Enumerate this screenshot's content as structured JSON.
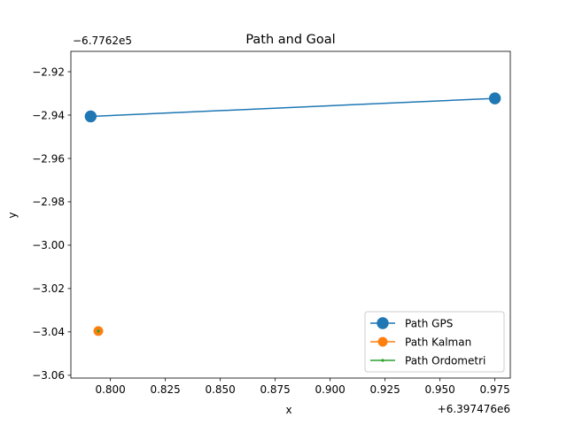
{
  "chart_data": {
    "type": "line",
    "title": "Path and Goal",
    "xlabel": "x",
    "ylabel": "y",
    "x_offset_label": "+6.397476e6",
    "y_offset_label": "−6.7762e5",
    "xlim": [
      0.782,
      0.982
    ],
    "ylim": [
      -3.0613,
      -2.9106
    ],
    "x_ticks": [
      {
        "value": 0.8,
        "label": "0.800"
      },
      {
        "value": 0.825,
        "label": "0.825"
      },
      {
        "value": 0.85,
        "label": "0.850"
      },
      {
        "value": 0.875,
        "label": "0.875"
      },
      {
        "value": 0.9,
        "label": "0.900"
      },
      {
        "value": 0.925,
        "label": "0.925"
      },
      {
        "value": 0.95,
        "label": "0.950"
      },
      {
        "value": 0.975,
        "label": "0.975"
      }
    ],
    "y_ticks": [
      {
        "value": -2.92,
        "label": "−2.92"
      },
      {
        "value": -2.94,
        "label": "−2.94"
      },
      {
        "value": -2.96,
        "label": "−2.96"
      },
      {
        "value": -2.98,
        "label": "−2.98"
      },
      {
        "value": -3.0,
        "label": "−3.00"
      },
      {
        "value": -3.02,
        "label": "−3.02"
      },
      {
        "value": -3.04,
        "label": "−3.04"
      },
      {
        "value": -3.06,
        "label": "−3.06"
      }
    ],
    "grid": false,
    "legend_position": "lower-right",
    "series": [
      {
        "name": "Path GPS",
        "color": "#1f77b4",
        "marker": "large-circle",
        "points": [
          [
            0.791,
            -2.9406
          ],
          [
            0.975,
            -2.9323
          ]
        ]
      },
      {
        "name": "Path Kalman",
        "color": "#ff7f0e",
        "marker": "medium-circle",
        "points": [
          [
            0.7945,
            -3.0396
          ]
        ]
      },
      {
        "name": "Path Ordometri",
        "color": "#2ca02c",
        "marker": "small-dot",
        "points": [
          [
            0.7945,
            -3.0396
          ]
        ]
      }
    ]
  }
}
